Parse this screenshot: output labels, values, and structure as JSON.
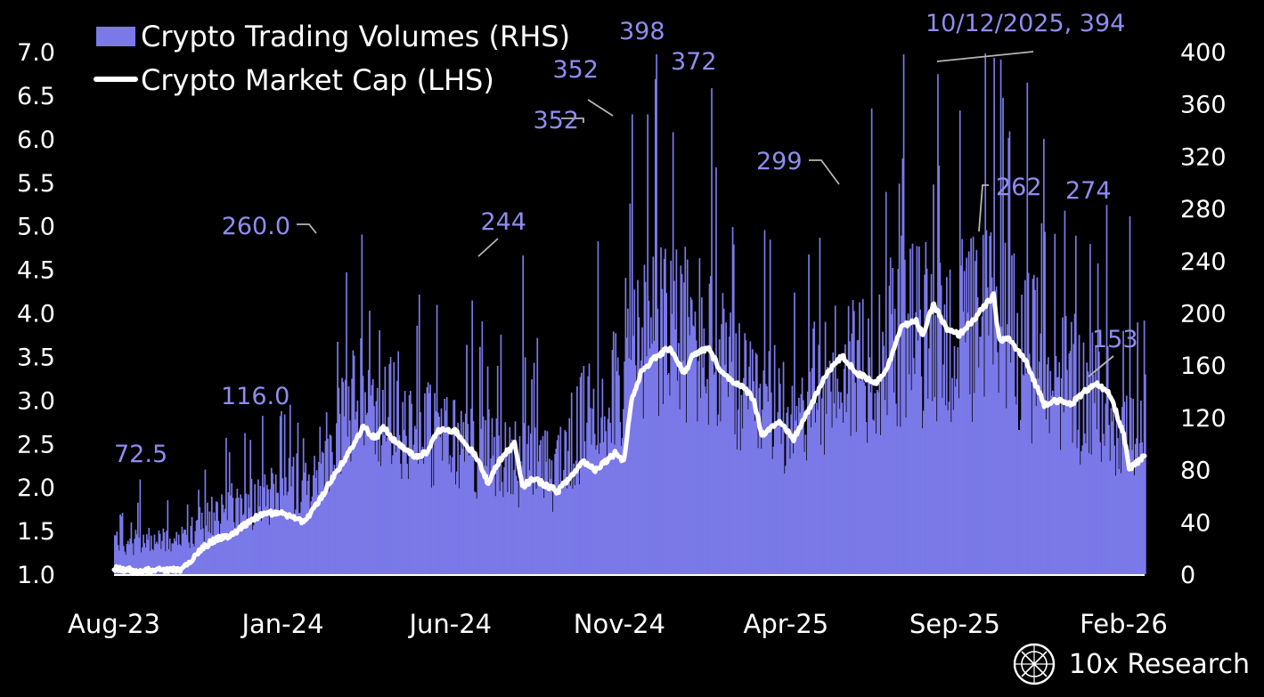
{
  "chart_data": {
    "type": "bar+line",
    "title": "",
    "legend": [
      {
        "name": "Crypto Trading Volumes (RHS)",
        "marker": "bar",
        "color": "#7b79e8"
      },
      {
        "name": "Crypto Market Cap (LHS)",
        "marker": "line",
        "color": "#ffffff"
      }
    ],
    "legend_position": "top-left",
    "x_range": [
      "2023-08-01",
      "2026-02-20"
    ],
    "x_ticks": [
      {
        "label": "Aug-23",
        "date": "2023-08-01"
      },
      {
        "label": "Jan-24",
        "date": "2024-01-01"
      },
      {
        "label": "Jun-24",
        "date": "2024-06-01"
      },
      {
        "label": "Nov-24",
        "date": "2024-11-01"
      },
      {
        "label": "Apr-25",
        "date": "2025-04-01"
      },
      {
        "label": "Sep-25",
        "date": "2025-09-01"
      },
      {
        "label": "Feb-26",
        "date": "2026-02-01"
      }
    ],
    "y_left": {
      "label": "Crypto Market Cap",
      "ylim": [
        1.0,
        7.0
      ],
      "ticks": [
        "1.0",
        "1.5",
        "2.0",
        "2.5",
        "3.0",
        "3.5",
        "4.0",
        "4.5",
        "5.0",
        "5.5",
        "6.0",
        "6.5",
        "7.0"
      ]
    },
    "y_right": {
      "label": "Crypto Trading Volumes",
      "ylim": [
        0,
        400
      ],
      "ticks": [
        "0",
        "40",
        "80",
        "120",
        "160",
        "200",
        "240",
        "280",
        "320",
        "360",
        "400"
      ]
    },
    "market_cap_anchors": [
      [
        "2023-08-01",
        1.07
      ],
      [
        "2023-08-20",
        1.04
      ],
      [
        "2023-09-15",
        1.05
      ],
      [
        "2023-10-01",
        1.05
      ],
      [
        "2023-10-20",
        1.3
      ],
      [
        "2023-11-01",
        1.4
      ],
      [
        "2023-11-15",
        1.45
      ],
      [
        "2023-12-01",
        1.6
      ],
      [
        "2023-12-15",
        1.7
      ],
      [
        "2024-01-01",
        1.7
      ],
      [
        "2024-01-20",
        1.6
      ],
      [
        "2024-02-01",
        1.8
      ],
      [
        "2024-02-15",
        2.1
      ],
      [
        "2024-03-01",
        2.4
      ],
      [
        "2024-03-14",
        2.7
      ],
      [
        "2024-03-25",
        2.55
      ],
      [
        "2024-04-01",
        2.7
      ],
      [
        "2024-04-13",
        2.5
      ],
      [
        "2024-04-30",
        2.35
      ],
      [
        "2024-05-10",
        2.4
      ],
      [
        "2024-05-21",
        2.65
      ],
      [
        "2024-06-05",
        2.65
      ],
      [
        "2024-06-24",
        2.35
      ],
      [
        "2024-07-05",
        2.05
      ],
      [
        "2024-07-15",
        2.3
      ],
      [
        "2024-07-29",
        2.5
      ],
      [
        "2024-08-05",
        2.0
      ],
      [
        "2024-08-15",
        2.1
      ],
      [
        "2024-09-06",
        1.95
      ],
      [
        "2024-09-20",
        2.15
      ],
      [
        "2024-09-29",
        2.3
      ],
      [
        "2024-10-10",
        2.2
      ],
      [
        "2024-10-29",
        2.4
      ],
      [
        "2024-11-05",
        2.3
      ],
      [
        "2024-11-12",
        3.0
      ],
      [
        "2024-11-22",
        3.35
      ],
      [
        "2024-12-05",
        3.5
      ],
      [
        "2024-12-17",
        3.6
      ],
      [
        "2024-12-30",
        3.3
      ],
      [
        "2025-01-06",
        3.5
      ],
      [
        "2025-01-20",
        3.6
      ],
      [
        "2025-02-03",
        3.3
      ],
      [
        "2025-02-25",
        3.1
      ],
      [
        "2025-03-03",
        3.0
      ],
      [
        "2025-03-10",
        2.6
      ],
      [
        "2025-03-25",
        2.75
      ],
      [
        "2025-04-08",
        2.55
      ],
      [
        "2025-04-22",
        2.9
      ],
      [
        "2025-05-10",
        3.35
      ],
      [
        "2025-05-22",
        3.5
      ],
      [
        "2025-06-05",
        3.3
      ],
      [
        "2025-06-22",
        3.2
      ],
      [
        "2025-07-03",
        3.4
      ],
      [
        "2025-07-14",
        3.85
      ],
      [
        "2025-07-28",
        3.9
      ],
      [
        "2025-08-03",
        3.75
      ],
      [
        "2025-08-13",
        4.1
      ],
      [
        "2025-08-25",
        3.8
      ],
      [
        "2025-09-05",
        3.75
      ],
      [
        "2025-09-20",
        3.95
      ],
      [
        "2025-10-06",
        4.2
      ],
      [
        "2025-10-11",
        3.7
      ],
      [
        "2025-10-20",
        3.7
      ],
      [
        "2025-11-04",
        3.45
      ],
      [
        "2025-11-21",
        2.95
      ],
      [
        "2025-12-01",
        3.0
      ],
      [
        "2025-12-15",
        2.95
      ],
      [
        "2026-01-06",
        3.2
      ],
      [
        "2026-01-20",
        3.05
      ],
      [
        "2026-02-01",
        2.6
      ],
      [
        "2026-02-06",
        2.2
      ],
      [
        "2026-02-15",
        2.3
      ],
      [
        "2026-02-20",
        2.35
      ]
    ],
    "volume_baseline": [
      [
        "2023-08-01",
        25
      ],
      [
        "2023-10-01",
        30
      ],
      [
        "2023-11-01",
        50
      ],
      [
        "2024-01-01",
        70
      ],
      [
        "2024-02-15",
        100
      ],
      [
        "2024-03-15",
        160
      ],
      [
        "2024-05-01",
        120
      ],
      [
        "2024-07-01",
        100
      ],
      [
        "2024-09-01",
        85
      ],
      [
        "2024-11-10",
        180
      ],
      [
        "2024-12-15",
        205
      ],
      [
        "2025-01-15",
        190
      ],
      [
        "2025-03-01",
        135
      ],
      [
        "2025-04-15",
        140
      ],
      [
        "2025-05-15",
        165
      ],
      [
        "2025-07-15",
        200
      ],
      [
        "2025-09-01",
        195
      ],
      [
        "2025-10-10",
        215
      ],
      [
        "2025-11-15",
        175
      ],
      [
        "2025-12-15",
        155
      ],
      [
        "2026-01-15",
        140
      ],
      [
        "2026-02-20",
        100
      ]
    ],
    "volume_annotations": [
      {
        "label": "72.5",
        "date": "2023-08-24",
        "value": 72.5
      },
      {
        "label": "116.0",
        "date": "2024-01-14",
        "value": 116.0
      },
      {
        "label": "260.0",
        "date": "2024-03-12",
        "value": 260.0
      },
      {
        "label": "244",
        "date": "2024-08-05",
        "value": 244
      },
      {
        "label": "352",
        "date": "2024-11-12",
        "value": 352
      },
      {
        "label": "352",
        "date": "2024-11-26",
        "value": 352
      },
      {
        "label": "398",
        "date": "2024-12-04",
        "value": 398
      },
      {
        "label": "372",
        "date": "2025-01-23",
        "value": 372
      },
      {
        "label": "299",
        "date": "2025-07-12",
        "value": 299
      },
      {
        "label": "10/12/2025, 394",
        "date": "2025-10-12",
        "value": 394
      },
      {
        "label": "262",
        "date": "2025-11-21",
        "value": 262
      },
      {
        "label": "274",
        "date": "2026-02-06",
        "value": 274
      },
      {
        "label": "153",
        "date": "2026-02-20",
        "value": 153
      }
    ]
  },
  "brand": {
    "name": "10x Research"
  }
}
